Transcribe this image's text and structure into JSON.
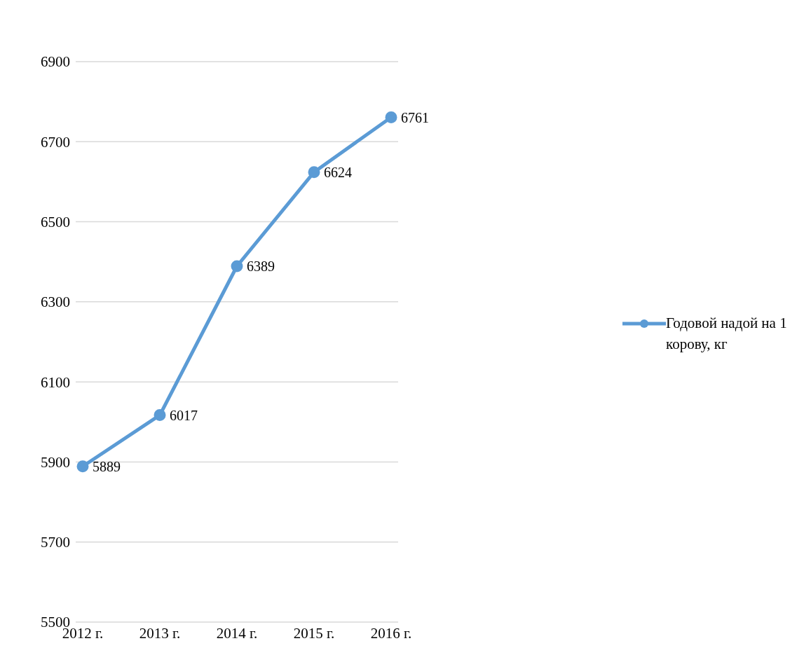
{
  "chart_data": {
    "type": "line",
    "categories": [
      "2012 г.",
      "2013 г.",
      "2014 г.",
      "2015 г.",
      "2016 г."
    ],
    "series": [
      {
        "name": "Годовой надой на 1 корову, кг",
        "color": "#5b9bd5",
        "values": [
          5889,
          6017,
          6389,
          6624,
          6761
        ]
      }
    ],
    "ylim": [
      5500,
      6900
    ],
    "yticks": [
      5500,
      5700,
      5900,
      6100,
      6300,
      6500,
      6700,
      6900
    ],
    "grid": "y",
    "legend": "right",
    "marker": "circle",
    "data_labels": true
  }
}
